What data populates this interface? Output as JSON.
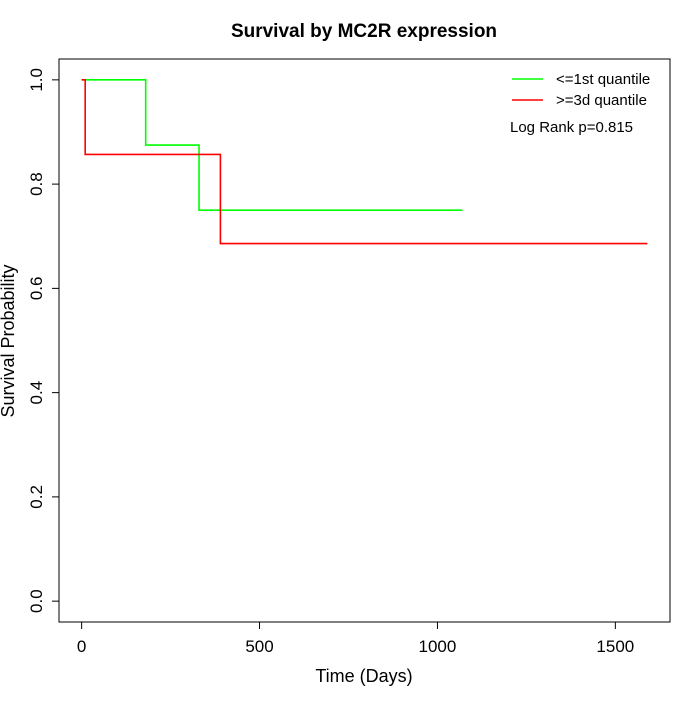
{
  "chart_data": {
    "type": "line",
    "step": true,
    "title": "Survival by MC2R expression",
    "xlabel": "Time (Days)",
    "ylabel": "Survival Probability",
    "xlim": [
      0,
      1650
    ],
    "ylim": [
      0.0,
      1.0
    ],
    "x_ticks": [
      0,
      500,
      1000,
      1500
    ],
    "x_tick_labels": [
      "0",
      "500",
      "1000",
      "1500"
    ],
    "y_ticks": [
      0.0,
      0.2,
      0.4,
      0.6,
      0.8,
      1.0
    ],
    "y_tick_labels": [
      "0.0",
      "0.2",
      "0.4",
      "0.6",
      "0.8",
      "1.0"
    ],
    "grid": false,
    "legend_position": "top-right",
    "annotation": "Log Rank p=0.815",
    "series": [
      {
        "name": "<=1st quantile",
        "color": "#00ff00",
        "x": [
          0,
          180,
          330,
          1070
        ],
        "y": [
          1.0,
          0.875,
          0.75,
          0.75
        ]
      },
      {
        "name": ">=3d quantile",
        "color": "#ff0000",
        "x": [
          0,
          10,
          390,
          1590
        ],
        "y": [
          1.0,
          0.857,
          0.686,
          0.686
        ]
      }
    ]
  }
}
